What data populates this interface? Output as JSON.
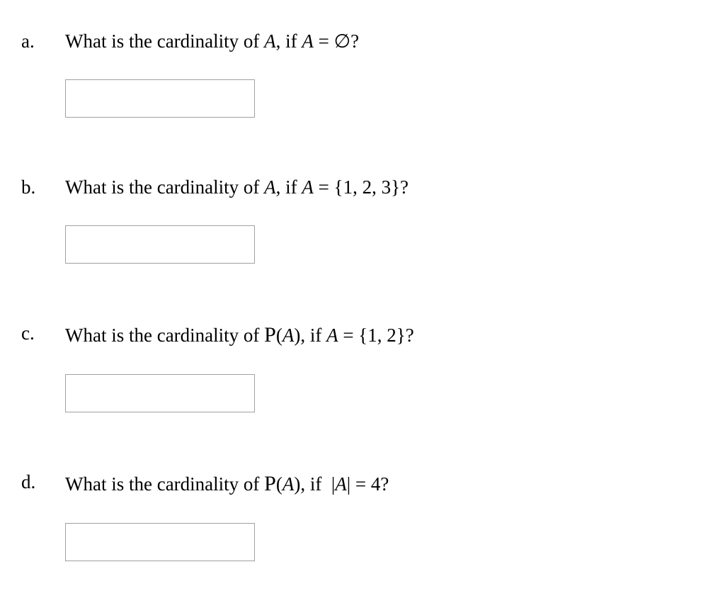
{
  "questions": [
    {
      "label": "a.",
      "prompt_html": "What is the cardinality of <span class='mi'>A</span>, if <span class='mi'>A</span> = ∅?"
    },
    {
      "label": "b.",
      "prompt_html": "What is the cardinality of <span class='mi'>A</span>, if <span class='mi'>A</span> = {1, 2, 3}?"
    },
    {
      "label": "c.",
      "prompt_html": "What is the cardinality of <span class='cal'>P</span>(<span class='mi'>A</span>), if <span class='mi'>A</span> = {1, 2}?"
    },
    {
      "label": "d.",
      "prompt_html": "What is the cardinality of <span class='cal'>P</span>(<span class='mi'>A</span>), if&nbsp; |<span class='mi'>A</span>| = 4?"
    }
  ],
  "input_values": [
    "",
    "",
    "",
    ""
  ]
}
